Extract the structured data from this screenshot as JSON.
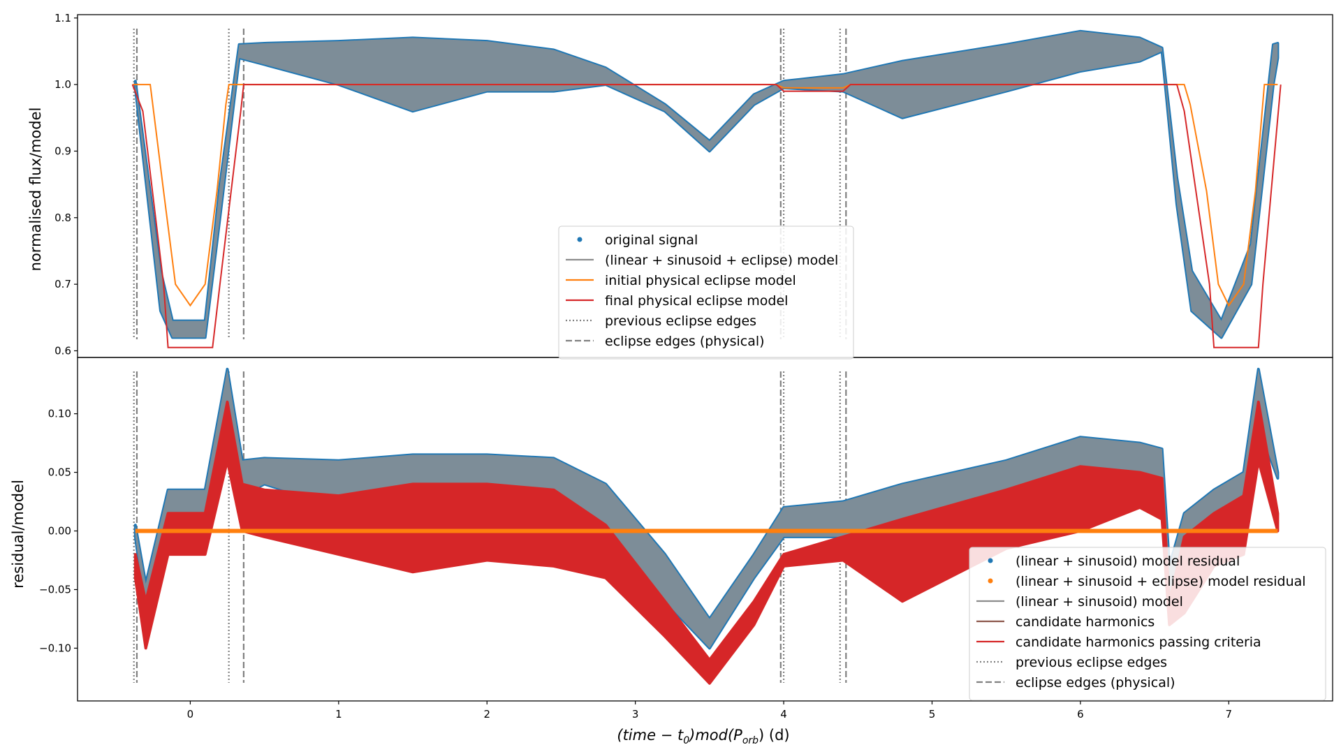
{
  "chart_data": [
    {
      "type": "line",
      "panel": "top",
      "ylabel": "normalised flux/model",
      "ylim": [
        0.59,
        1.105
      ],
      "yticks": [
        "0.6",
        "0.7",
        "0.8",
        "0.9",
        "1.0",
        "1.1"
      ],
      "legend_position": "lower-center",
      "legend": [
        {
          "label": "original signal",
          "kind": "dot",
          "color": "#1f77b4"
        },
        {
          "label": "(linear + sinusoid + eclipse) model",
          "kind": "line",
          "color": "#8c8c8c"
        },
        {
          "label": "initial physical eclipse model",
          "kind": "line",
          "color": "#ff7f0e"
        },
        {
          "label": "final physical eclipse model",
          "kind": "line",
          "color": "#d62728"
        },
        {
          "label": "previous eclipse edges",
          "kind": "dotted",
          "color": "#808080"
        },
        {
          "label": "eclipse edges (physical)",
          "kind": "dashed",
          "color": "#808080"
        }
      ],
      "series": [
        {
          "name": "original signal",
          "color": "#1f77b4",
          "kind": "band",
          "x": [
            -0.37,
            -0.2,
            -0.12,
            0.1,
            0.2,
            0.33,
            0.5,
            1.0,
            1.5,
            2.0,
            2.45,
            2.8,
            3.2,
            3.5,
            3.8,
            4.0,
            4.4,
            4.8,
            5.5,
            6.0,
            6.4,
            6.55,
            6.65,
            6.75,
            6.95,
            7.15,
            7.3,
            7.33
          ],
          "upper": [
            1.005,
            0.72,
            0.645,
            0.645,
            0.85,
            1.06,
            1.062,
            1.065,
            1.07,
            1.065,
            1.052,
            1.025,
            0.97,
            0.915,
            0.985,
            1.005,
            1.015,
            1.035,
            1.06,
            1.08,
            1.07,
            1.055,
            0.86,
            0.72,
            0.645,
            0.76,
            1.06,
            1.062
          ],
          "lower": [
            0.995,
            0.66,
            0.62,
            0.62,
            0.8,
            1.04,
            1.03,
            1.0,
            0.96,
            0.99,
            0.99,
            1.0,
            0.96,
            0.9,
            0.97,
            0.995,
            0.99,
            0.95,
            0.99,
            1.02,
            1.035,
            1.05,
            0.82,
            0.66,
            0.62,
            0.7,
            1.0,
            1.04
          ]
        },
        {
          "name": "initial physical eclipse model",
          "color": "#ff7f0e",
          "kind": "line",
          "x": [
            -0.39,
            -0.27,
            -0.18,
            -0.1,
            0.0,
            0.1,
            0.18,
            0.24,
            0.26,
            3.95,
            4.0,
            4.4,
            4.45,
            6.7,
            6.74,
            6.85,
            6.93,
            7.0,
            7.1,
            7.18,
            7.24,
            7.33
          ],
          "y": [
            1.0,
            1.0,
            0.84,
            0.7,
            0.668,
            0.7,
            0.84,
            0.97,
            1.0,
            1.0,
            0.995,
            0.995,
            1.0,
            1.0,
            0.97,
            0.84,
            0.7,
            0.668,
            0.7,
            0.84,
            1.0,
            1.0
          ]
        },
        {
          "name": "final physical eclipse model",
          "color": "#d62728",
          "kind": "line",
          "x": [
            -0.39,
            -0.32,
            -0.18,
            -0.15,
            0.15,
            0.2,
            0.34,
            0.36,
            3.95,
            4.0,
            4.4,
            4.45,
            6.65,
            6.7,
            6.87,
            6.9,
            7.2,
            7.23,
            7.35
          ],
          "y": [
            1.0,
            0.96,
            0.7,
            0.605,
            0.605,
            0.7,
            0.96,
            1.0,
            1.0,
            0.99,
            0.99,
            1.0,
            1.0,
            0.96,
            0.7,
            0.605,
            0.605,
            0.7,
            1.0
          ]
        }
      ],
      "vlines_dotted": [
        -0.38,
        0.26,
        4.0,
        4.38
      ],
      "vlines_dashed": [
        -0.36,
        0.36,
        3.98,
        4.42
      ]
    },
    {
      "type": "line",
      "panel": "bottom",
      "xlabel": "(time − t0)mod(Porb) (d)",
      "ylabel": "residual/model",
      "ylim": [
        -0.145,
        0.148
      ],
      "yticks": [
        "−0.10",
        "−0.05",
        "0.00",
        "0.05",
        "0.10"
      ],
      "xlim": [
        -0.76,
        7.7
      ],
      "xticks": [
        "0",
        "1",
        "2",
        "3",
        "4",
        "5",
        "6",
        "7"
      ],
      "legend_position": "lower-right",
      "legend": [
        {
          "label": "(linear + sinusoid) model residual",
          "kind": "dot",
          "color": "#1f77b4"
        },
        {
          "label": "(linear + sinusoid + eclipse) model residual",
          "kind": "dot",
          "color": "#ff7f0e"
        },
        {
          "label": "(linear + sinusoid) model",
          "kind": "line",
          "color": "#8c8c8c"
        },
        {
          "label": "candidate harmonics",
          "kind": "line",
          "color": "#8c564b"
        },
        {
          "label": "candidate harmonics passing criteria",
          "kind": "line",
          "color": "#d62728"
        },
        {
          "label": "previous eclipse edges",
          "kind": "dotted",
          "color": "#808080"
        },
        {
          "label": "eclipse edges (physical)",
          "kind": "dashed",
          "color": "#808080"
        }
      ],
      "series": [
        {
          "name": "(linear + sinusoid) model residual",
          "color": "#1f77b4",
          "kind": "band",
          "x": [
            -0.37,
            -0.3,
            -0.15,
            0.1,
            0.25,
            0.35,
            0.5,
            1.0,
            1.5,
            2.0,
            2.45,
            2.8,
            3.2,
            3.5,
            3.8,
            4.0,
            4.4,
            4.8,
            5.5,
            6.0,
            6.4,
            6.55,
            6.6,
            6.7,
            6.9,
            7.1,
            7.2,
            7.33
          ],
          "upper": [
            0.005,
            -0.045,
            0.035,
            0.035,
            0.138,
            0.06,
            0.062,
            0.06,
            0.065,
            0.065,
            0.062,
            0.04,
            -0.02,
            -0.075,
            -0.02,
            0.02,
            0.025,
            0.04,
            0.06,
            0.08,
            0.075,
            0.07,
            -0.03,
            0.015,
            0.035,
            0.05,
            0.138,
            0.05
          ],
          "lower": [
            -0.005,
            -0.07,
            0.005,
            0.005,
            0.09,
            0.03,
            0.04,
            0.02,
            0.0,
            0.02,
            0.02,
            0.0,
            -0.06,
            -0.1,
            -0.04,
            -0.005,
            -0.005,
            0.0,
            0.03,
            0.04,
            0.045,
            0.04,
            -0.06,
            -0.01,
            0.015,
            0.02,
            0.09,
            0.045
          ]
        },
        {
          "name": "candidate harmonics passing criteria",
          "color": "#d62728",
          "kind": "band",
          "x": [
            -0.37,
            -0.3,
            -0.15,
            0.1,
            0.25,
            0.35,
            0.5,
            1.0,
            1.5,
            2.0,
            2.45,
            2.8,
            3.2,
            3.5,
            3.8,
            4.0,
            4.4,
            4.8,
            5.5,
            6.0,
            6.4,
            6.55,
            6.6,
            6.7,
            6.9,
            7.1,
            7.2,
            7.33
          ],
          "upper": [
            -0.02,
            -0.06,
            0.015,
            0.015,
            0.11,
            0.04,
            0.035,
            0.03,
            0.04,
            0.04,
            0.035,
            0.005,
            -0.06,
            -0.11,
            -0.06,
            -0.02,
            -0.005,
            0.01,
            0.035,
            0.055,
            0.05,
            0.045,
            -0.06,
            -0.005,
            0.015,
            0.03,
            0.11,
            0.015
          ],
          "lower": [
            -0.04,
            -0.1,
            -0.02,
            -0.02,
            0.06,
            0.0,
            -0.005,
            -0.02,
            -0.035,
            -0.025,
            -0.03,
            -0.04,
            -0.09,
            -0.13,
            -0.08,
            -0.03,
            -0.025,
            -0.06,
            -0.015,
            0.0,
            0.02,
            0.01,
            -0.08,
            -0.07,
            -0.03,
            -0.02,
            0.06,
            0.0
          ]
        },
        {
          "name": "(linear + sinusoid + eclipse) model residual",
          "color": "#ff7f0e",
          "kind": "line",
          "x": [
            -0.37,
            7.33
          ],
          "y": [
            0.0,
            0.0
          ]
        }
      ],
      "vlines_dotted": [
        -0.38,
        0.26,
        4.0,
        4.38
      ],
      "vlines_dashed": [
        -0.36,
        0.36,
        3.98,
        4.42
      ]
    }
  ]
}
